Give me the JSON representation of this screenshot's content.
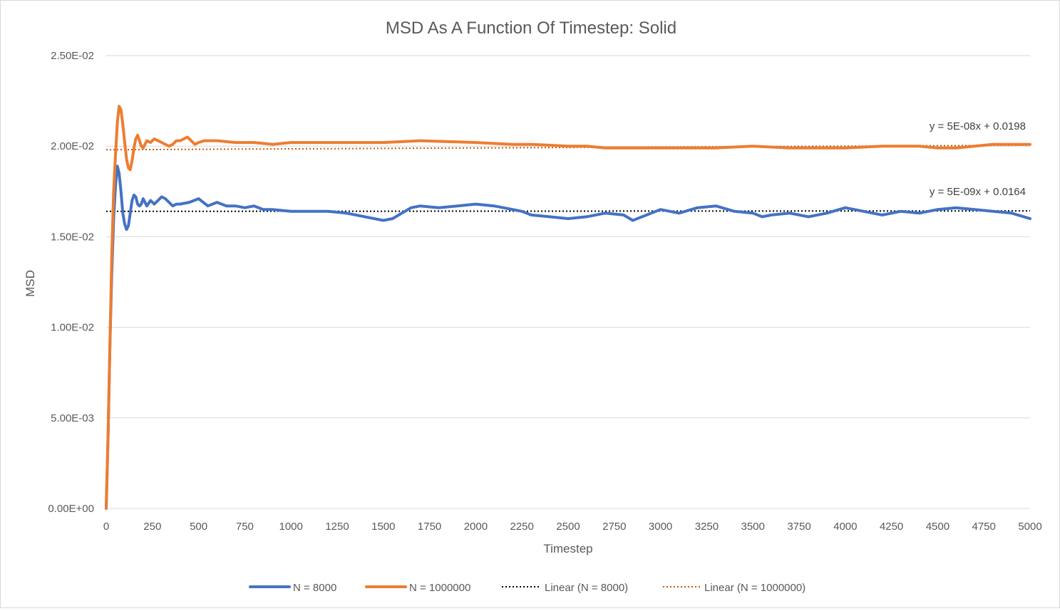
{
  "chart_data": {
    "type": "line",
    "title": "MSD As A Function Of Timestep: Solid",
    "xlabel": "Timestep",
    "ylabel": "MSD",
    "xlim": [
      0,
      5000
    ],
    "ylim": [
      0,
      0.025
    ],
    "grid": "horizontal",
    "legend_position": "bottom",
    "x_ticks": [
      0,
      250,
      500,
      750,
      1000,
      1250,
      1500,
      1750,
      2000,
      2250,
      2500,
      2750,
      3000,
      3250,
      3500,
      3750,
      4000,
      4250,
      4500,
      4750,
      5000
    ],
    "y_ticks": [
      0,
      0.005,
      0.01,
      0.015,
      0.02,
      0.025
    ],
    "y_tick_labels": [
      "0.00E+00",
      "5.00E-03",
      "1.00E-02",
      "1.50E-02",
      "2.00E-02",
      "2.50E-02"
    ],
    "series": [
      {
        "name": "N = 8000",
        "color": "#4472C4",
        "style": "solid",
        "x": [
          0,
          10,
          20,
          30,
          40,
          50,
          60,
          70,
          80,
          90,
          100,
          110,
          120,
          130,
          140,
          150,
          160,
          170,
          180,
          190,
          200,
          220,
          240,
          260,
          280,
          300,
          320,
          340,
          360,
          380,
          400,
          450,
          500,
          550,
          600,
          650,
          700,
          750,
          800,
          850,
          900,
          1000,
          1100,
          1200,
          1300,
          1400,
          1500,
          1550,
          1600,
          1650,
          1700,
          1800,
          1900,
          2000,
          2100,
          2200,
          2250,
          2300,
          2400,
          2500,
          2600,
          2700,
          2800,
          2850,
          2900,
          3000,
          3100,
          3200,
          3300,
          3400,
          3500,
          3550,
          3600,
          3700,
          3800,
          3900,
          4000,
          4100,
          4200,
          4300,
          4400,
          4500,
          4600,
          4700,
          4800,
          4900,
          5000
        ],
        "values": [
          0,
          0.004,
          0.009,
          0.013,
          0.016,
          0.0178,
          0.0189,
          0.0185,
          0.0175,
          0.0163,
          0.0157,
          0.0154,
          0.0156,
          0.0163,
          0.017,
          0.0173,
          0.0172,
          0.0168,
          0.0167,
          0.0168,
          0.0171,
          0.0167,
          0.017,
          0.0168,
          0.017,
          0.0172,
          0.0171,
          0.0169,
          0.0167,
          0.0168,
          0.0168,
          0.0169,
          0.0171,
          0.0167,
          0.0169,
          0.0167,
          0.0167,
          0.0166,
          0.0167,
          0.0165,
          0.0165,
          0.0164,
          0.0164,
          0.0164,
          0.0163,
          0.0161,
          0.0159,
          0.016,
          0.0163,
          0.0166,
          0.0167,
          0.0166,
          0.0167,
          0.0168,
          0.0167,
          0.0165,
          0.0164,
          0.0162,
          0.0161,
          0.016,
          0.0161,
          0.0163,
          0.0162,
          0.0159,
          0.0161,
          0.0165,
          0.0163,
          0.0166,
          0.0167,
          0.0164,
          0.0163,
          0.0161,
          0.0162,
          0.0163,
          0.0161,
          0.0163,
          0.0166,
          0.0164,
          0.0162,
          0.0164,
          0.0163,
          0.0165,
          0.0166,
          0.0165,
          0.0164,
          0.0163,
          0.016
        ]
      },
      {
        "name": "N = 1000000",
        "color": "#ED7D31",
        "style": "solid",
        "x": [
          0,
          10,
          20,
          30,
          40,
          50,
          60,
          70,
          80,
          90,
          100,
          110,
          120,
          130,
          140,
          150,
          160,
          170,
          180,
          190,
          200,
          220,
          240,
          260,
          280,
          300,
          320,
          340,
          360,
          380,
          400,
          420,
          440,
          460,
          480,
          500,
          530,
          560,
          600,
          700,
          800,
          900,
          1000,
          1200,
          1500,
          1700,
          2000,
          2200,
          2300,
          2500,
          2600,
          2700,
          2800,
          3000,
          3200,
          3300,
          3500,
          3700,
          3900,
          4000,
          4200,
          4400,
          4500,
          4600,
          4700,
          4800,
          4900,
          5000
        ],
        "values": [
          0,
          0.004,
          0.009,
          0.014,
          0.0175,
          0.0195,
          0.0213,
          0.0222,
          0.022,
          0.0212,
          0.0202,
          0.0193,
          0.0188,
          0.0187,
          0.0192,
          0.0199,
          0.0204,
          0.0206,
          0.0203,
          0.02,
          0.0199,
          0.0203,
          0.0202,
          0.0204,
          0.0203,
          0.0202,
          0.0201,
          0.02,
          0.0201,
          0.0203,
          0.0203,
          0.0204,
          0.0205,
          0.0203,
          0.0201,
          0.0202,
          0.0203,
          0.0203,
          0.0203,
          0.0202,
          0.0202,
          0.0201,
          0.0202,
          0.0202,
          0.0202,
          0.0203,
          0.0202,
          0.0201,
          0.0201,
          0.02,
          0.02,
          0.0199,
          0.0199,
          0.0199,
          0.0199,
          0.0199,
          0.02,
          0.0199,
          0.0199,
          0.0199,
          0.02,
          0.02,
          0.0199,
          0.0199,
          0.02,
          0.0201,
          0.0201,
          0.0201
        ]
      },
      {
        "name": "Linear (N = 8000)",
        "color": "#000000",
        "style": "dotted",
        "trendline": {
          "slope": 5e-09,
          "intercept": 0.0164,
          "equation": "y = 5E-09x + 0.0164"
        }
      },
      {
        "name": "Linear (N = 1000000)",
        "color": "#C55A11",
        "style": "dotted",
        "trendline": {
          "slope": 5e-08,
          "intercept": 0.0198,
          "equation": "y = 5E-08x + 0.0198"
        }
      }
    ]
  }
}
